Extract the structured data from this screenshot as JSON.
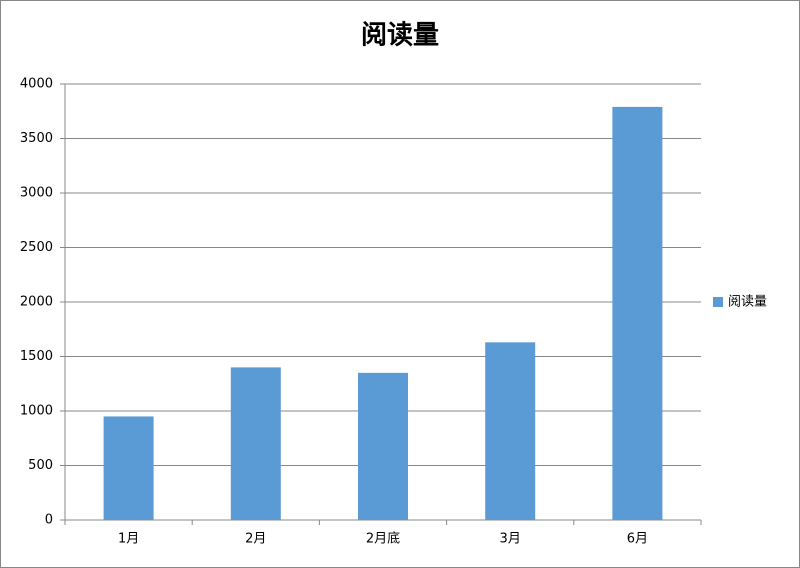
{
  "chart_data": {
    "type": "bar",
    "title": "阅读量",
    "categories": [
      "1月",
      "2月",
      "2月底",
      "3月",
      "6月"
    ],
    "series": [
      {
        "name": "阅读量",
        "color": "#5b9bd5",
        "values": [
          950,
          1400,
          1350,
          1630,
          3790
        ]
      }
    ],
    "ylim": [
      0,
      4000
    ],
    "yticks": [
      0,
      500,
      1000,
      1500,
      2000,
      2500,
      3000,
      3500,
      4000
    ],
    "grid": true,
    "legend": "right"
  }
}
